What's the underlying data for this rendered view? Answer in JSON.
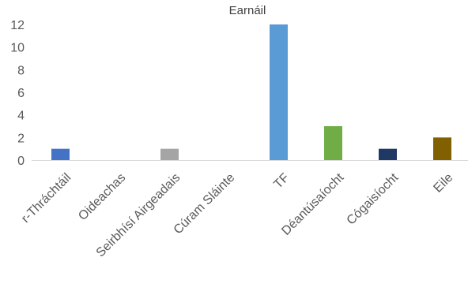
{
  "chart_data": {
    "type": "bar",
    "title": "Earnáil",
    "xlabel": "",
    "ylabel": "",
    "ylim": [
      0,
      12
    ],
    "yticks": [
      0,
      2,
      4,
      6,
      8,
      10,
      12
    ],
    "grid": false,
    "legend": "none",
    "categories": [
      "r-Thráchtáil",
      "Oideachas",
      "Seirbhísí Airgeadais",
      "Cúram Sláinte",
      "TF",
      "Déantúsaíocht",
      "Cógaisíocht",
      "Eile"
    ],
    "values": [
      1,
      0,
      1,
      0,
      12,
      3,
      1,
      2
    ],
    "colors": [
      "#4472c4",
      "#4472c4",
      "#a5a5a5",
      "#a5a5a5",
      "#5b9bd5",
      "#70ad47",
      "#1f3864",
      "#806000"
    ]
  }
}
